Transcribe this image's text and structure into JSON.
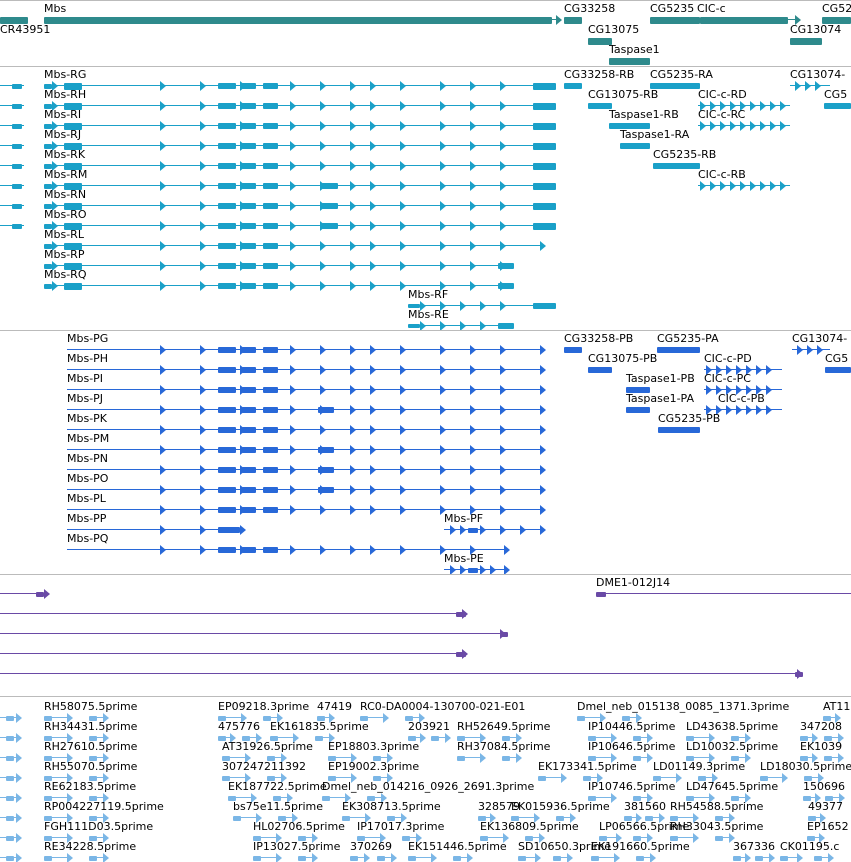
{
  "tracks": [
    {
      "name": "genes",
      "color": "#2e8a8c",
      "labels": [
        {
          "text": "Mbs"
        },
        {
          "text": "CR43951"
        },
        {
          "text": "CG33258"
        },
        {
          "text": "CG5235"
        },
        {
          "text": "CIC-c"
        },
        {
          "text": "CG52"
        },
        {
          "text": "CG13075"
        },
        {
          "text": "CG13074"
        },
        {
          "text": "Taspase1"
        }
      ]
    },
    {
      "name": "transcripts-rna",
      "color": "#1aa0c8",
      "labels": [
        "Mbs-RG",
        "Mbs-RH",
        "Mbs-RI",
        "Mbs-RJ",
        "Mbs-RK",
        "Mbs-RM",
        "Mbs-RN",
        "Mbs-RO",
        "Mbs-RL",
        "Mbs-RP",
        "Mbs-RQ",
        "Mbs-RF",
        "Mbs-RE",
        "CG33258-RB",
        "CG5235-RA",
        "CG13074-",
        "CG13075-RB",
        "CIC-c-RD",
        "CG5",
        "Taspase1-RB",
        "CIC-c-RC",
        "Taspase1-RA",
        "CG5235-RB",
        "CIC-c-RB"
      ]
    },
    {
      "name": "transcripts-protein",
      "color": "#2868d8",
      "labels": [
        "Mbs-PG",
        "Mbs-PH",
        "Mbs-PI",
        "Mbs-PJ",
        "Mbs-PK",
        "Mbs-PM",
        "Mbs-PN",
        "Mbs-PO",
        "Mbs-PL",
        "Mbs-PP",
        "Mbs-PQ",
        "Mbs-PF",
        "Mbs-PE",
        "CG33258-PB",
        "CG5235-PA",
        "CG13074-",
        "CG13075-PB",
        "CIC-c-PD",
        "CG5",
        "Taspase1-PB",
        "CIC-c-PC",
        "Taspase1-PA",
        "CIC-c-PB",
        "CG5235-PB"
      ]
    },
    {
      "name": "clones",
      "color": "#6a4aa6",
      "labels": [
        "DME1-012J14"
      ]
    },
    {
      "name": "ests",
      "color": "#7ab6e6",
      "labels": [
        "RH58075.5prime",
        "EP09218.3prime",
        "47419",
        "RC0-DA0004-130700-021-E01",
        "Dmel_neb_015138_0085_1371.3prime",
        "AT11",
        "RH34431.5prime",
        "475776",
        "EK161835.5prime",
        "203921",
        "RH52649.5prime",
        "IP10446.5prime",
        "LD43638.5prime",
        "347208",
        "RH27610.5prime",
        "AT31926.5prime",
        "EP18803.3prime",
        "RH37084.5prime",
        "IP10646.5prime",
        "LD10032.5prime",
        "EK1039",
        "RH55070.5prime",
        "307247211392",
        "EP19002.3prime",
        "EK173341.5prime",
        "LD01149.3prime",
        "LD18030.5prime",
        "RE62183.5prime",
        "EK187722.5prime",
        "Dmel_neb_014216_0926_2691.3prime",
        "IP10746.5prime",
        "LD47645.5prime",
        "150696",
        "RP004227119.5prime",
        "bs75e11.5prime",
        "EK308713.5prime",
        "328579",
        "EK015936.5prime",
        "381560",
        "RH54588.5prime",
        "49377",
        "FGH111D03.5prime",
        "HL02706.5prime",
        "IP17017.3prime",
        "EK136809.5prime",
        "LP06566.5prime",
        "RH33043.5prime",
        "EP1652",
        "RE34228.5prime",
        "IP13027.5prime",
        "370269",
        "EK151446.5prime",
        "SD10650.3prime",
        "EK191660.5prime",
        "367336",
        "CK01195.c"
      ]
    }
  ]
}
